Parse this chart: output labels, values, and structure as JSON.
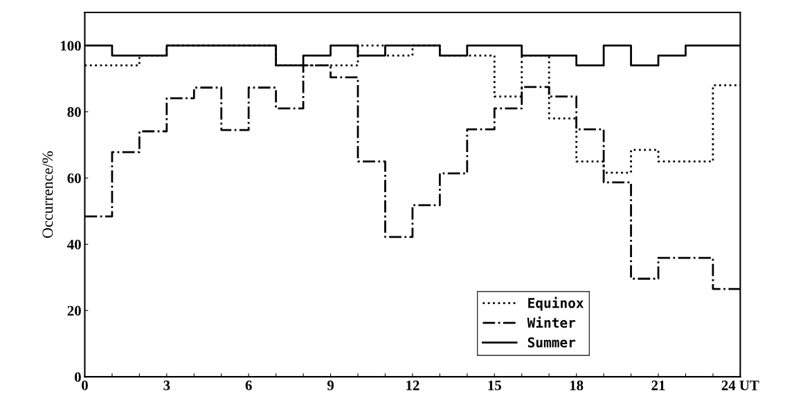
{
  "chart_data": {
    "type": "step",
    "ylabel": "Occurrence/%",
    "x": [
      0,
      1,
      2,
      3,
      4,
      5,
      6,
      7,
      8,
      9,
      10,
      11,
      12,
      13,
      14,
      15,
      16,
      17,
      18,
      19,
      20,
      21,
      22,
      23,
      24
    ],
    "series": [
      {
        "name": "Equinox",
        "color": "#000000",
        "line_style": "dotted",
        "values": [
          94,
          94,
          97,
          100,
          100,
          100,
          100,
          94,
          94,
          94,
          100,
          97,
          100,
          97,
          97,
          84.6,
          97,
          78,
          65,
          61.6,
          68.5,
          65,
          65,
          88,
          88
        ]
      },
      {
        "name": "Winter",
        "color": "#000000",
        "line_style": "dashdot",
        "values": [
          48.4,
          67.8,
          74.1,
          84.1,
          87.3,
          74.5,
          87.3,
          81,
          94,
          90.4,
          65,
          42.2,
          51.8,
          61.4,
          74.7,
          81,
          87.5,
          84.6,
          74.7,
          58.7,
          29.6,
          35.9,
          35.9,
          26.5,
          26.5
        ]
      },
      {
        "name": "Summer",
        "color": "#000000",
        "line_style": "solid",
        "values": [
          100,
          97,
          97,
          100,
          100,
          100,
          100,
          94,
          97,
          100,
          97,
          100,
          100,
          97,
          100,
          100,
          97,
          97,
          94,
          100,
          94,
          97,
          100,
          100,
          100
        ]
      }
    ],
    "xlim": [
      0,
      24
    ],
    "ylim": [
      0,
      110
    ],
    "xticks": [
      0,
      {
        "value": 1,
        "label": null
      },
      {
        "value": 2,
        "label": null
      },
      3,
      {
        "value": 4,
        "label": null
      },
      {
        "value": 5,
        "label": null
      },
      6,
      {
        "value": 7,
        "label": null
      },
      {
        "value": 8,
        "label": null
      },
      9,
      {
        "value": 10,
        "label": null
      },
      {
        "value": 11,
        "label": null
      },
      12,
      {
        "value": 13,
        "label": null
      },
      {
        "value": 14,
        "label": null
      },
      15,
      {
        "value": 16,
        "label": null
      },
      {
        "value": 17,
        "label": null
      },
      18,
      {
        "value": 19,
        "label": null
      },
      {
        "value": 20,
        "label": null
      },
      21,
      {
        "value": 22,
        "label": null
      },
      {
        "value": 23,
        "label": null
      },
      {
        "value": 24,
        "label": "24 UT"
      }
    ],
    "yticks": [
      0,
      20,
      40,
      60,
      80,
      100
    ],
    "grid": false,
    "legend": "bottom right"
  }
}
